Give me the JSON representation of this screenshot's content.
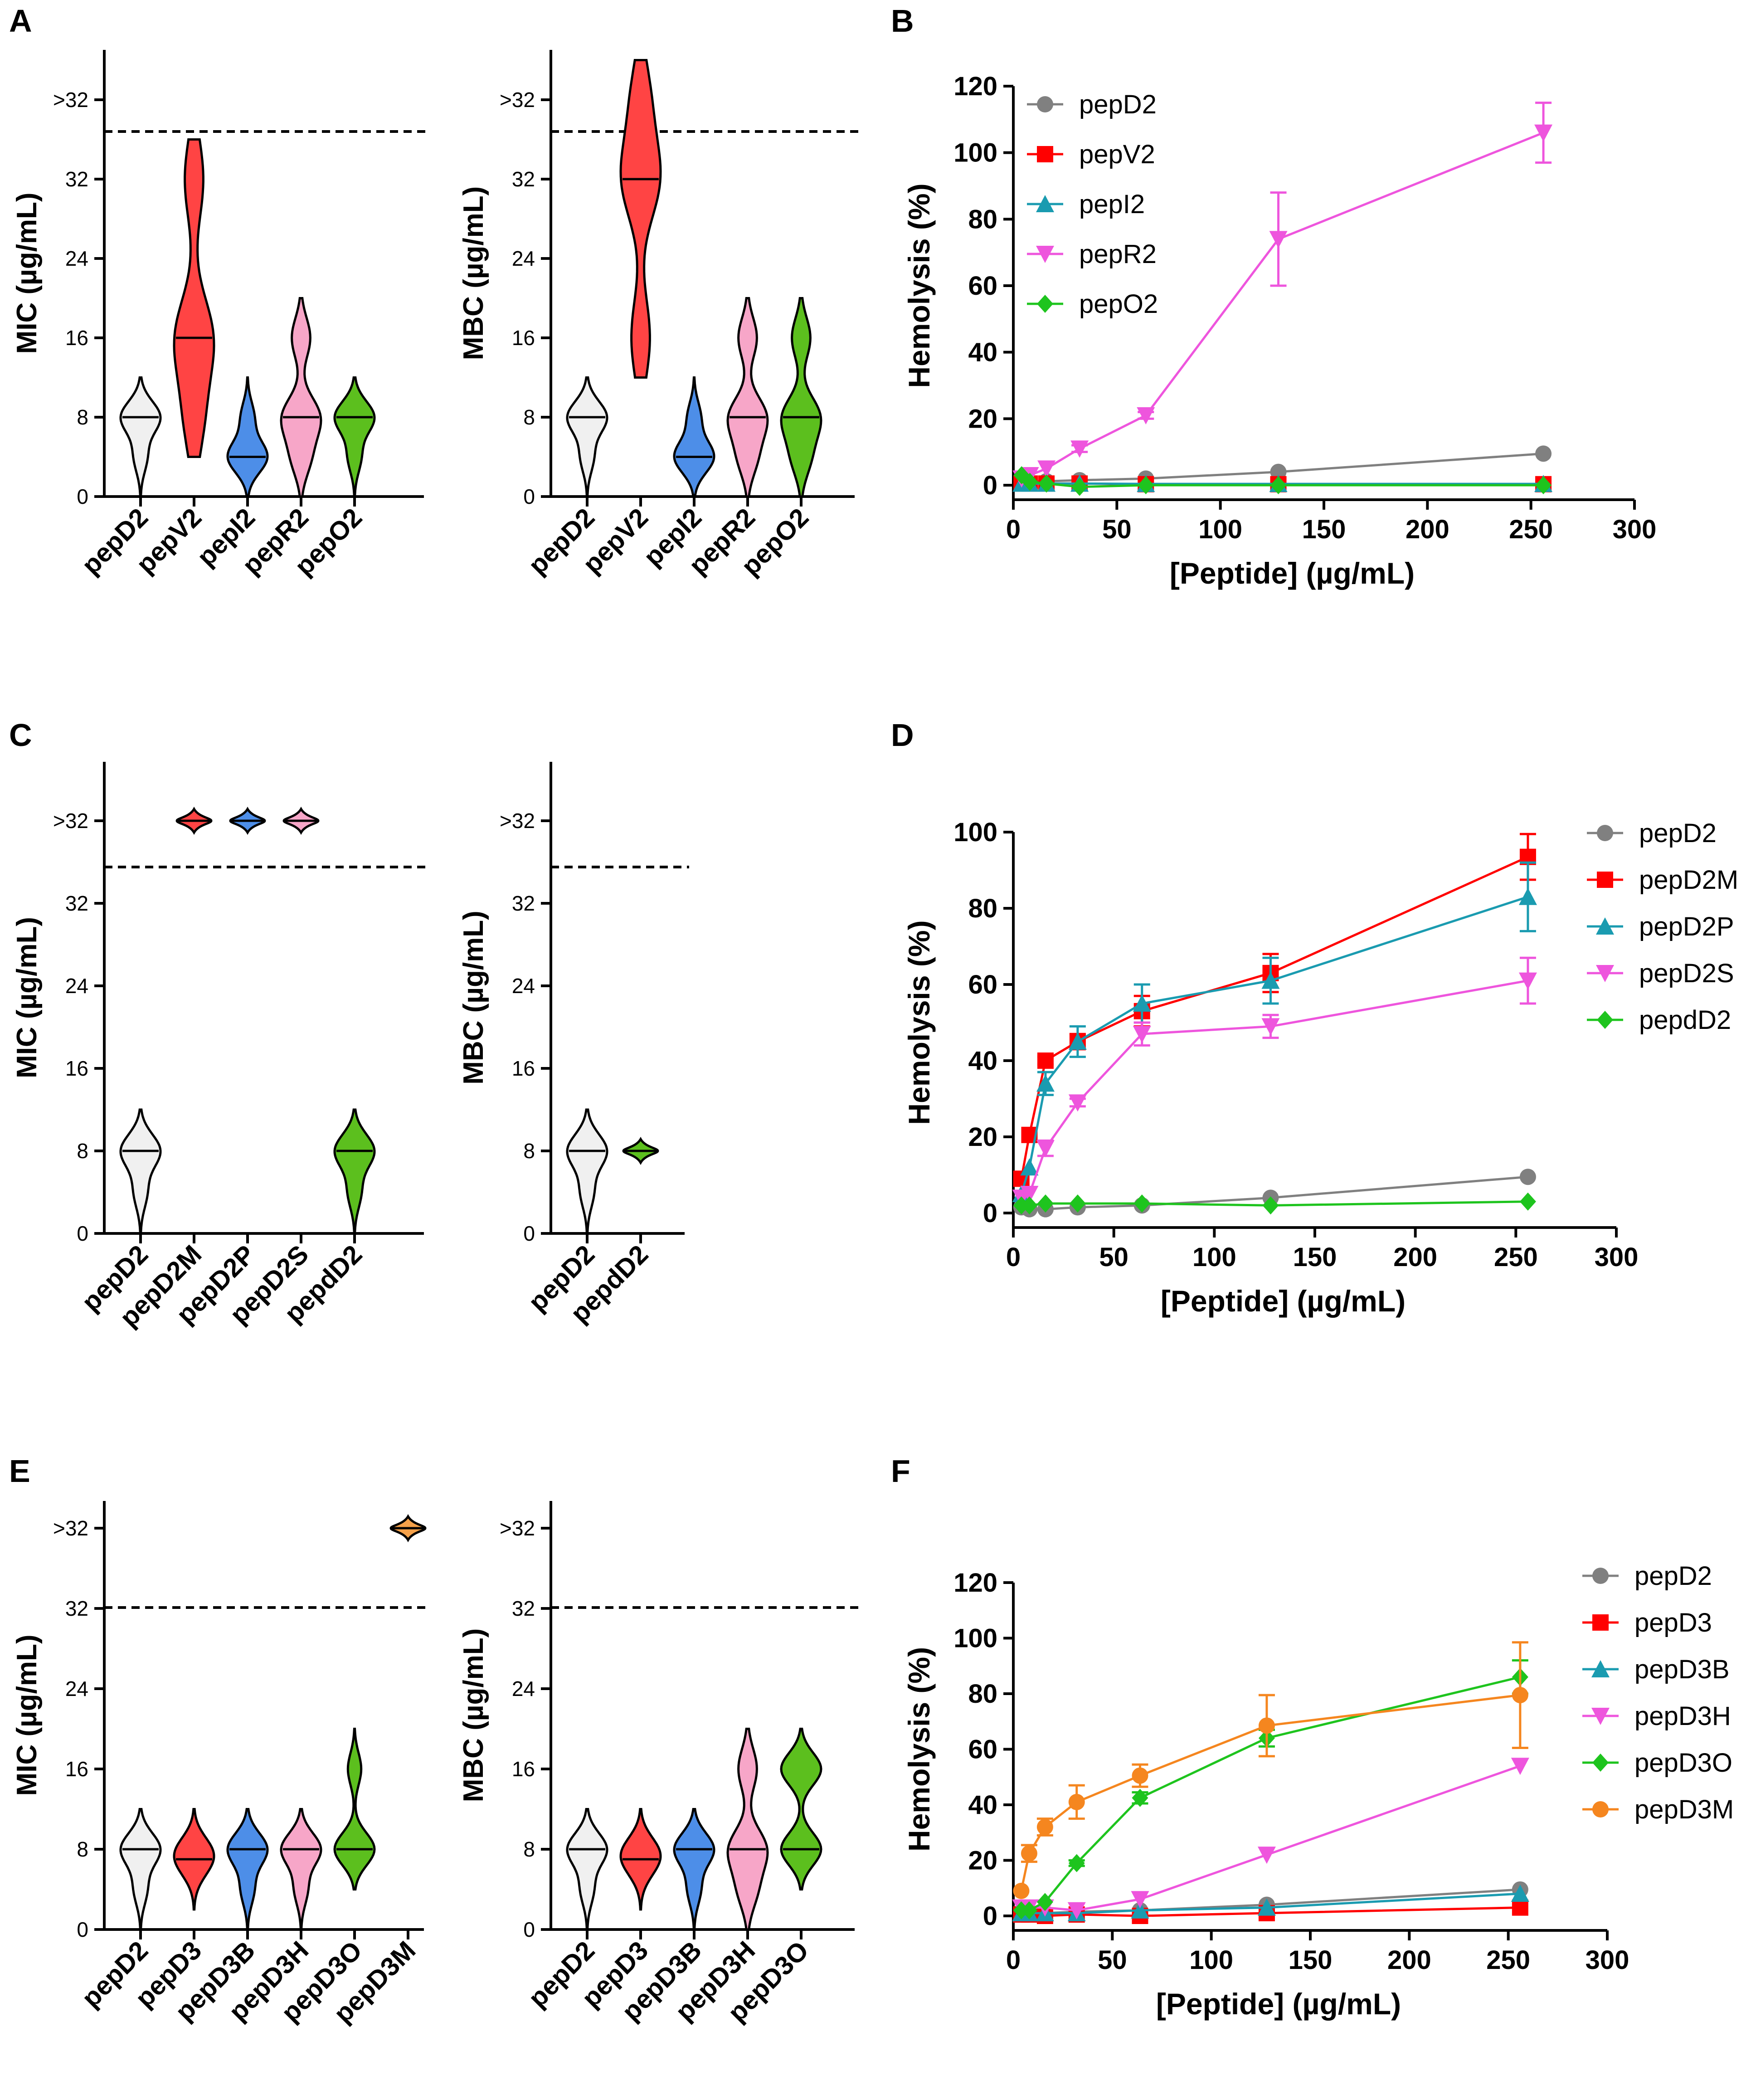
{
  "figure": {
    "panel_letters": [
      "A",
      "B",
      "C",
      "D",
      "E",
      "F"
    ]
  },
  "chart_data": [
    {
      "panel": "A",
      "type": "violin",
      "ylabel": "MIC (µg/mL)",
      "yticks": [
        "0",
        "8",
        "16",
        "24",
        "32",
        ">32"
      ],
      "categories": [
        "pepD2",
        "pepV2",
        "pepI2",
        "pepR2",
        "pepO2"
      ],
      "colors": [
        "#f0f0f0",
        "#ff4444",
        "#4d8ee8",
        "#f7a6c8",
        "#5cbf1e"
      ],
      "series": [
        {
          "name": "pepD2",
          "values": [
            8,
            8,
            8,
            4
          ],
          "median": 8
        },
        {
          "name": "pepV2",
          "values": [
            8,
            16,
            16,
            32
          ],
          "median": 16
        },
        {
          "name": "pepI2",
          "values": [
            4,
            4,
            4,
            8
          ],
          "median": 4
        },
        {
          "name": "pepR2",
          "values": [
            4,
            8,
            8,
            16
          ],
          "median": 8
        },
        {
          "name": "pepO2",
          "values": [
            4,
            8,
            8,
            8
          ],
          "median": 8
        }
      ]
    },
    {
      "panel": "A",
      "type": "violin",
      "ylabel": "MBC (µg/mL)",
      "yticks": [
        "0",
        "8",
        "16",
        "24",
        "32",
        ">32"
      ],
      "categories": [
        "pepD2",
        "pepV2",
        "pepI2",
        "pepR2",
        "pepO2"
      ],
      "colors": [
        "#f0f0f0",
        "#ff4444",
        "#4d8ee8",
        "#f7a6c8",
        "#5cbf1e"
      ],
      "series": [
        {
          "name": "pepD2",
          "values": [
            8,
            8,
            8,
            4
          ],
          "median": 8
        },
        {
          "name": "pepV2",
          "values": [
            16,
            32,
            32,
            40
          ],
          "median": 32
        },
        {
          "name": "pepI2",
          "values": [
            4,
            4,
            4,
            8
          ],
          "median": 4
        },
        {
          "name": "pepR2",
          "values": [
            4,
            8,
            8,
            16
          ],
          "median": 8
        },
        {
          "name": "pepO2",
          "values": [
            4,
            8,
            8,
            16
          ],
          "median": 8
        }
      ]
    },
    {
      "panel": "B",
      "type": "line",
      "xlabel": "[Peptide]  (µg/mL)",
      "ylabel": "Hemolysis (%)",
      "xlim": [
        0,
        300
      ],
      "ylim": [
        0,
        120
      ],
      "xticks": [
        "0",
        "50",
        "100",
        "150",
        "200",
        "250",
        "300"
      ],
      "yticks": [
        "0",
        "20",
        "40",
        "60",
        "80",
        "100",
        "120"
      ],
      "x": [
        4,
        8,
        16,
        32,
        64,
        128,
        256
      ],
      "series": [
        {
          "name": "pepD2",
          "color": "#808080",
          "marker": "circle",
          "values": [
            1.5,
            1,
            1.2,
            1.5,
            2,
            4,
            9.5
          ]
        },
        {
          "name": "pepV2",
          "color": "#ff0000",
          "marker": "square",
          "values": [
            0.5,
            0.5,
            0.5,
            0.5,
            0.3,
            0.3,
            0.3
          ]
        },
        {
          "name": "pepI2",
          "color": "#1a9bb0",
          "marker": "triangle-up",
          "values": [
            0.5,
            0.5,
            0.5,
            0.5,
            0.4,
            0.4,
            0.4
          ]
        },
        {
          "name": "pepR2",
          "color": "#ee55dd",
          "marker": "triangle-down",
          "values": [
            2,
            3,
            5,
            11,
            21,
            74,
            106
          ],
          "errors": [
            0,
            0,
            0,
            1,
            1,
            14,
            9
          ]
        },
        {
          "name": "pepO2",
          "color": "#1ec41e",
          "marker": "diamond",
          "values": [
            3,
            1,
            0.5,
            -0.5,
            0,
            0,
            0
          ]
        }
      ]
    },
    {
      "panel": "C",
      "type": "violin",
      "ylabel": "MIC (µg/mL)",
      "yticks": [
        "0",
        "8",
        "16",
        "24",
        "32",
        ">32"
      ],
      "categories": [
        "pepD2",
        "pepD2M",
        "pepD2P",
        "pepD2S",
        "pepdD2"
      ],
      "colors": [
        "#f0f0f0",
        "#ff4444",
        "#4d8ee8",
        "#f7a6c8",
        "#5cbf1e"
      ],
      "series": [
        {
          "name": "pepD2",
          "values": [
            8,
            8,
            8,
            4
          ],
          "median": 8
        },
        {
          "name": "pepD2M",
          "values": [
            40,
            40,
            40,
            40
          ],
          "median": 40
        },
        {
          "name": "pepD2P",
          "values": [
            40,
            40,
            40,
            40
          ],
          "median": 40
        },
        {
          "name": "pepD2S",
          "values": [
            40,
            40,
            40,
            40
          ],
          "median": 40
        },
        {
          "name": "pepdD2",
          "values": [
            8,
            8,
            8,
            4
          ],
          "median": 8
        }
      ]
    },
    {
      "panel": "C",
      "type": "violin",
      "ylabel": "MBC (µg/mL)",
      "yticks": [
        "0",
        "8",
        "16",
        "24",
        "32",
        ">32"
      ],
      "categories": [
        "pepD2",
        "pepdD2"
      ],
      "colors": [
        "#f0f0f0",
        "#5cbf1e"
      ],
      "series": [
        {
          "name": "pepD2",
          "values": [
            8,
            8,
            8,
            4
          ],
          "median": 8
        },
        {
          "name": "pepdD2",
          "values": [
            8,
            8,
            8,
            8
          ],
          "median": 8
        }
      ]
    },
    {
      "panel": "D",
      "type": "line",
      "xlabel": "[Peptide]  (µg/mL)",
      "ylabel": "Hemolysis (%)",
      "xlim": [
        0,
        300
      ],
      "ylim": [
        0,
        100
      ],
      "xticks": [
        "0",
        "50",
        "100",
        "150",
        "200",
        "250",
        "300"
      ],
      "yticks": [
        "0",
        "20",
        "40",
        "60",
        "80",
        "100"
      ],
      "x": [
        4,
        8,
        16,
        32,
        64,
        128,
        256
      ],
      "series": [
        {
          "name": "pepD2",
          "color": "#808080",
          "marker": "circle",
          "values": [
            1.5,
            1,
            1,
            1.5,
            2,
            4,
            9.5
          ]
        },
        {
          "name": "pepD2M",
          "color": "#ff0000",
          "marker": "square",
          "values": [
            9,
            20.5,
            40,
            45,
            53,
            63,
            93.5
          ],
          "errors": [
            0,
            0,
            1,
            2,
            4,
            5,
            6
          ]
        },
        {
          "name": "pepD2P",
          "color": "#1a9bb0",
          "marker": "triangle-up",
          "values": [
            5,
            12,
            34,
            45,
            55,
            61,
            83
          ],
          "errors": [
            0,
            0,
            3,
            4,
            5,
            6,
            9
          ]
        },
        {
          "name": "pepD2S",
          "color": "#ee55dd",
          "marker": "triangle-down",
          "values": [
            4,
            5,
            17,
            29,
            47,
            49,
            61
          ],
          "errors": [
            0,
            0,
            2,
            1,
            3,
            3,
            6
          ]
        },
        {
          "name": "pepdD2",
          "color": "#1ec41e",
          "marker": "diamond",
          "values": [
            2,
            2,
            2.5,
            2.5,
            2.5,
            2,
            3
          ]
        }
      ]
    },
    {
      "panel": "E",
      "type": "violin",
      "ylabel": "MIC (µg/mL)",
      "yticks": [
        "0",
        "8",
        "16",
        "24",
        "32",
        ">32"
      ],
      "categories": [
        "pepD2",
        "pepD3",
        "pepD3B",
        "pepD3H",
        "pepD3O",
        "pepD3M"
      ],
      "colors": [
        "#f0f0f0",
        "#ff4444",
        "#4d8ee8",
        "#f7a6c8",
        "#5cbf1e",
        "#f5a14a"
      ],
      "series": [
        {
          "name": "pepD2",
          "values": [
            8,
            8,
            8,
            4
          ],
          "median": 8
        },
        {
          "name": "pepD3",
          "values": [
            6,
            7,
            8,
            8
          ],
          "median": 7
        },
        {
          "name": "pepD3B",
          "values": [
            4,
            8,
            8,
            8
          ],
          "median": 8
        },
        {
          "name": "pepD3H",
          "values": [
            4,
            8,
            8,
            8
          ],
          "median": 8
        },
        {
          "name": "pepD3O",
          "values": [
            8,
            8,
            8,
            16
          ],
          "median": 8
        },
        {
          "name": "pepD3M",
          "values": [
            40,
            40,
            40,
            40
          ],
          "median": 40
        }
      ]
    },
    {
      "panel": "E",
      "type": "violin",
      "ylabel": "MBC (µg/mL)",
      "yticks": [
        "0",
        "8",
        "16",
        "24",
        "32",
        ">32"
      ],
      "categories": [
        "pepD2",
        "pepD3",
        "pepD3B",
        "pepD3H",
        "pepD3O"
      ],
      "colors": [
        "#f0f0f0",
        "#ff4444",
        "#4d8ee8",
        "#f7a6c8",
        "#5cbf1e"
      ],
      "series": [
        {
          "name": "pepD2",
          "values": [
            8,
            8,
            8,
            4
          ],
          "median": 8
        },
        {
          "name": "pepD3",
          "values": [
            6,
            7,
            8,
            8
          ],
          "median": 7
        },
        {
          "name": "pepD3B",
          "values": [
            4,
            8,
            8,
            8
          ],
          "median": 8
        },
        {
          "name": "pepD3H",
          "values": [
            4,
            8,
            8,
            16
          ],
          "median": 8
        },
        {
          "name": "pepD3O",
          "values": [
            8,
            8,
            16,
            16
          ],
          "median": 8
        }
      ]
    },
    {
      "panel": "F",
      "type": "line",
      "xlabel": "[Peptide]  (µg/mL)",
      "ylabel": "Hemolysis (%)",
      "xlim": [
        0,
        300
      ],
      "ylim": [
        0,
        120
      ],
      "xticks": [
        "0",
        "50",
        "100",
        "150",
        "200",
        "250",
        "300"
      ],
      "yticks": [
        "0",
        "20",
        "40",
        "60",
        "80",
        "100",
        "120"
      ],
      "x": [
        4,
        8,
        16,
        32,
        64,
        128,
        256
      ],
      "series": [
        {
          "name": "pepD2",
          "color": "#808080",
          "marker": "circle",
          "values": [
            1.5,
            1,
            1,
            1.5,
            2,
            4,
            9.5
          ]
        },
        {
          "name": "pepD3",
          "color": "#ff0000",
          "marker": "square",
          "values": [
            0.5,
            0.5,
            0,
            0.5,
            0,
            1,
            3
          ]
        },
        {
          "name": "pepD3B",
          "color": "#1a9bb0",
          "marker": "triangle-up",
          "values": [
            1,
            1,
            1,
            1,
            2,
            3,
            8
          ]
        },
        {
          "name": "pepD3H",
          "color": "#ee55dd",
          "marker": "triangle-down",
          "values": [
            3,
            3,
            3,
            2,
            6,
            22,
            54
          ]
        },
        {
          "name": "pepD3O",
          "color": "#1ec41e",
          "marker": "diamond",
          "values": [
            2,
            2,
            5,
            19,
            42.5,
            64,
            86
          ],
          "errors": [
            0,
            0,
            0,
            1,
            2,
            3,
            6
          ]
        },
        {
          "name": "pepD3M",
          "color": "#f5861f",
          "marker": "circle",
          "values": [
            9,
            22.5,
            32,
            41,
            50.5,
            68.5,
            79.5
          ],
          "errors": [
            0,
            3,
            3,
            6,
            4,
            11,
            19
          ]
        }
      ]
    }
  ]
}
